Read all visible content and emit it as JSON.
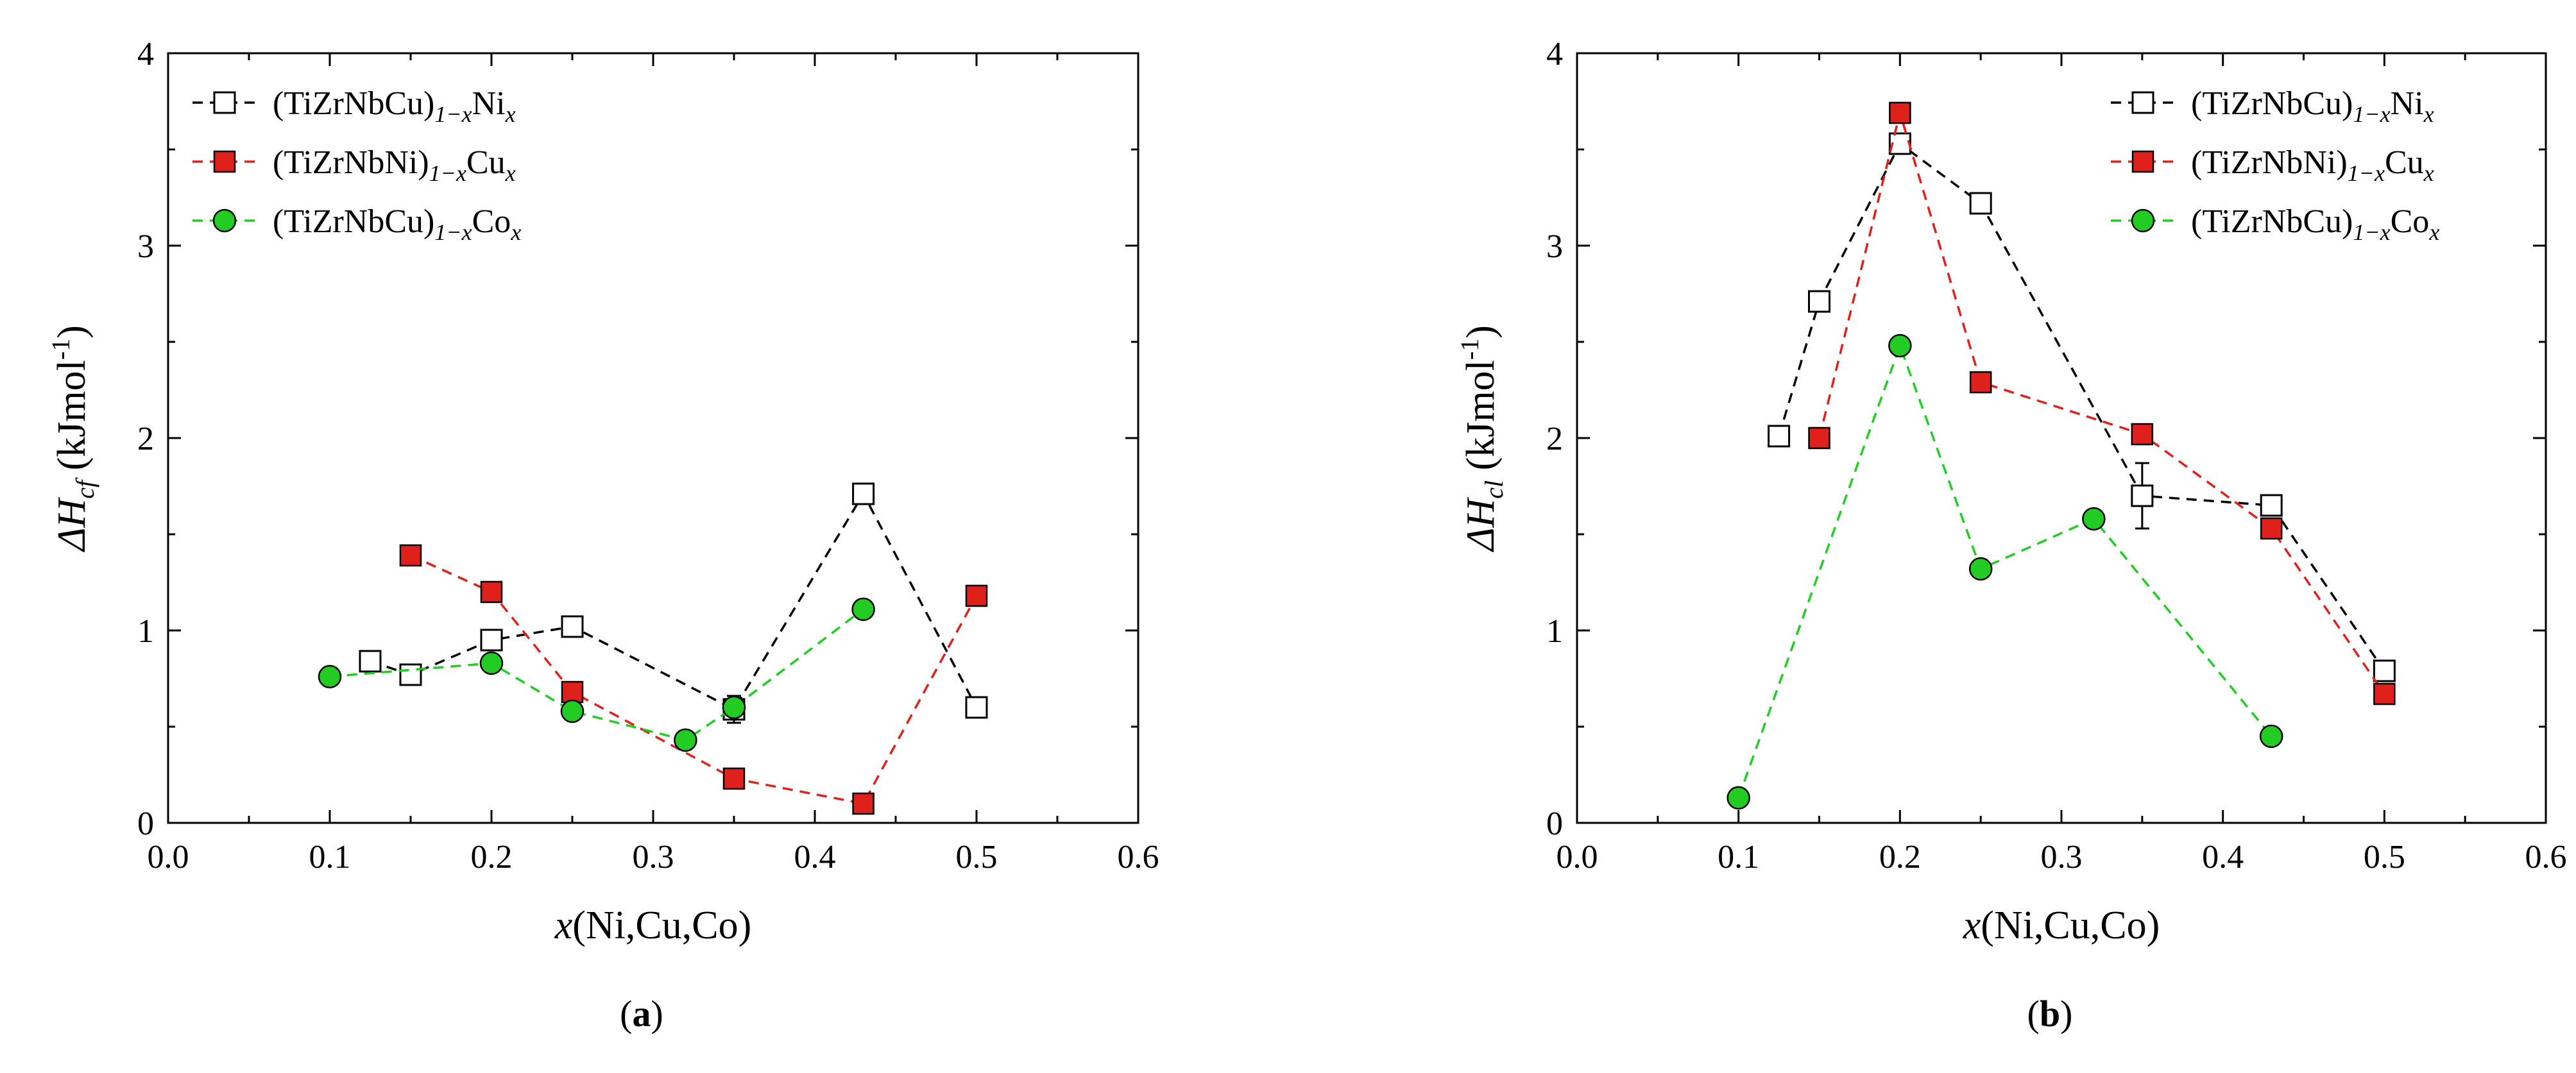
{
  "chart_data": [
    {
      "type": "line",
      "panel_label": "a",
      "xlabel": {
        "italic": "x",
        "rest": "(Ni,Cu,Co)"
      },
      "ylabel": {
        "main": "ΔH",
        "sub": "cf",
        "unit_pre": " (kJmol",
        "unit_sup": "-1",
        "unit_post": ")"
      },
      "xlim": [
        0.0,
        0.6
      ],
      "ylim": [
        0,
        4
      ],
      "xticks": [
        "0.0",
        "0.1",
        "0.2",
        "0.3",
        "0.4",
        "0.5",
        "0.6"
      ],
      "yticks": [
        "0",
        "1",
        "2",
        "3",
        "4"
      ],
      "legend_position": "top-left",
      "series": [
        {
          "name": "(TiZrNbCu)1−xNix",
          "label_main": "(TiZrNbCu)",
          "label_sub": "1−x",
          "label_el": "Ni",
          "label_el_sub": "x",
          "color": "#000000",
          "marker": "open-square",
          "x": [
            0.125,
            0.15,
            0.2,
            0.25,
            0.35,
            0.43,
            0.5
          ],
          "y": [
            0.84,
            0.77,
            0.95,
            1.02,
            0.59,
            1.71,
            0.6
          ],
          "err": [
            0,
            0,
            0,
            0,
            0.07,
            0,
            0
          ]
        },
        {
          "name": "(TiZrNbNi)1−xCux",
          "label_main": "(TiZrNbNi)",
          "label_sub": "1−x",
          "label_el": "Cu",
          "label_el_sub": "x",
          "color": "#e0201b",
          "marker": "filled-square",
          "x": [
            0.15,
            0.2,
            0.25,
            0.35,
            0.43,
            0.5
          ],
          "y": [
            1.39,
            1.2,
            0.68,
            0.23,
            0.1,
            1.18
          ],
          "err": [
            0,
            0,
            0,
            0,
            0,
            0
          ]
        },
        {
          "name": "(TiZrNbCu)1−xCox",
          "label_main": "(TiZrNbCu)",
          "label_sub": "1−x",
          "label_el": "Co",
          "label_el_sub": "x",
          "color": "#22cc22",
          "marker": "filled-circle",
          "x": [
            0.1,
            0.2,
            0.25,
            0.32,
            0.35,
            0.43
          ],
          "y": [
            0.76,
            0.83,
            0.58,
            0.43,
            0.6,
            1.11
          ],
          "err": [
            0,
            0,
            0,
            0,
            0,
            0
          ]
        }
      ]
    },
    {
      "type": "line",
      "panel_label": "b",
      "xlabel": {
        "italic": "x",
        "rest": "(Ni,Cu,Co)"
      },
      "ylabel": {
        "main": "ΔH",
        "sub": "cl",
        "unit_pre": " (kJmol",
        "unit_sup": "-1",
        "unit_post": ")"
      },
      "xlim": [
        0.0,
        0.6
      ],
      "ylim": [
        0,
        4
      ],
      "xticks": [
        "0.0",
        "0.1",
        "0.2",
        "0.3",
        "0.4",
        "0.5",
        "0.6"
      ],
      "yticks": [
        "0",
        "1",
        "2",
        "3",
        "4"
      ],
      "legend_position": "top-right",
      "series": [
        {
          "name": "(TiZrNbCu)1−xNix",
          "label_main": "(TiZrNbCu)",
          "label_sub": "1−x",
          "label_el": "Ni",
          "label_el_sub": "x",
          "color": "#000000",
          "marker": "open-square",
          "x": [
            0.125,
            0.15,
            0.2,
            0.25,
            0.35,
            0.43,
            0.5
          ],
          "y": [
            2.01,
            2.71,
            3.53,
            3.22,
            1.7,
            1.65,
            0.79
          ],
          "err": [
            0,
            0,
            0,
            0,
            0.17,
            0,
            0
          ]
        },
        {
          "name": "(TiZrNbNi)1−xCux",
          "label_main": "(TiZrNbNi)",
          "label_sub": "1−x",
          "label_el": "Cu",
          "label_el_sub": "x",
          "color": "#e0201b",
          "marker": "filled-square",
          "x": [
            0.15,
            0.2,
            0.25,
            0.35,
            0.43,
            0.5
          ],
          "y": [
            2.0,
            3.69,
            2.29,
            2.02,
            1.53,
            0.67
          ],
          "err": [
            0,
            0,
            0,
            0,
            0,
            0
          ]
        },
        {
          "name": "(TiZrNbCu)1−xCox",
          "label_main": "(TiZrNbCu)",
          "label_sub": "1−x",
          "label_el": "Co",
          "label_el_sub": "x",
          "color": "#22cc22",
          "marker": "filled-circle",
          "x": [
            0.1,
            0.2,
            0.25,
            0.32,
            0.43
          ],
          "y": [
            0.13,
            2.48,
            1.32,
            1.58,
            0.45
          ],
          "err": [
            0,
            0,
            0,
            0,
            0
          ]
        }
      ]
    }
  ]
}
